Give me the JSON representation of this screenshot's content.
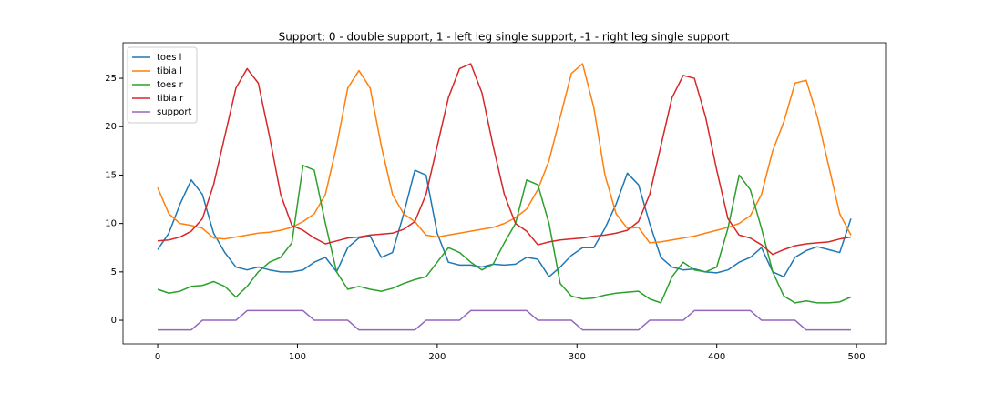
{
  "chart_data": {
    "type": "line",
    "title": "Support: 0 - double support, 1 - left leg single support, -1 - right leg single support",
    "x": [
      0,
      8,
      16,
      24,
      32,
      40,
      48,
      56,
      64,
      72,
      80,
      88,
      96,
      104,
      112,
      120,
      128,
      136,
      144,
      152,
      160,
      168,
      176,
      184,
      192,
      200,
      208,
      216,
      224,
      232,
      240,
      248,
      256,
      264,
      272,
      280,
      288,
      296,
      304,
      312,
      320,
      328,
      336,
      344,
      352,
      360,
      368,
      376,
      384,
      392,
      400,
      408,
      416,
      424,
      432,
      440,
      448,
      456,
      464,
      472,
      480,
      488,
      496
    ],
    "series": [
      {
        "name": "toes l",
        "color": "#1f77b4",
        "values": [
          7.3,
          9,
          12,
          14.5,
          13,
          9,
          7,
          5.5,
          5.2,
          5.5,
          5.2,
          5,
          5,
          5.2,
          6,
          6.5,
          5,
          7.5,
          8.5,
          8.7,
          6.5,
          7,
          11,
          15.5,
          15,
          9,
          6,
          5.7,
          5.7,
          5.5,
          5.8,
          5.7,
          5.8,
          6.5,
          6.3,
          4.5,
          5.5,
          6.7,
          7.5,
          7.5,
          9.5,
          12,
          15.2,
          14,
          10,
          6.5,
          5.5,
          5.2,
          5.3,
          5,
          4.9,
          5.2,
          6,
          6.5,
          7.5,
          5,
          4.5,
          6.5,
          7.2,
          7.6,
          7.3,
          7,
          10.5
        ]
      },
      {
        "name": "tibia l",
        "color": "#ff7f0e",
        "values": [
          13.7,
          11,
          10,
          9.8,
          9.5,
          8.5,
          8.4,
          8.6,
          8.8,
          9.0,
          9.1,
          9.3,
          9.6,
          10.2,
          11,
          13,
          18,
          24,
          25.8,
          24,
          18,
          13,
          11,
          10.2,
          8.8,
          8.6,
          8.8,
          9.0,
          9.2,
          9.4,
          9.6,
          10,
          10.6,
          11.5,
          13.5,
          16.5,
          21,
          25.5,
          26.5,
          22,
          15,
          11,
          9.5,
          9.6,
          8,
          8.1,
          8.3,
          8.5,
          8.7,
          9,
          9.3,
          9.6,
          10,
          10.8,
          13,
          17.5,
          20.5,
          24.5,
          24.8,
          21,
          16,
          11,
          8.8
        ]
      },
      {
        "name": "toes r",
        "color": "#2ca02c",
        "values": [
          3.2,
          2.8,
          3,
          3.5,
          3.6,
          4,
          3.5,
          2.4,
          3.5,
          5,
          6,
          6.5,
          8,
          16,
          15.5,
          10,
          5,
          3.2,
          3.5,
          3.2,
          3,
          3.3,
          3.8,
          4.2,
          4.5,
          6,
          7.5,
          7,
          6,
          5.2,
          5.8,
          8,
          10,
          14.5,
          14,
          10,
          3.8,
          2.5,
          2.2,
          2.3,
          2.6,
          2.8,
          2.9,
          3,
          2.2,
          1.8,
          4.5,
          6,
          5.2,
          5,
          5.5,
          9.5,
          15,
          13.5,
          9.5,
          5,
          2.5,
          1.8,
          2,
          1.8,
          1.8,
          1.9,
          2.4
        ]
      },
      {
        "name": "tibia r",
        "color": "#d62728",
        "values": [
          8.2,
          8.3,
          8.6,
          9.2,
          10.5,
          14,
          19,
          24,
          26,
          24.5,
          19,
          13,
          9.8,
          9.3,
          8.5,
          7.9,
          8.2,
          8.5,
          8.6,
          8.8,
          8.9,
          9.0,
          9.4,
          10.2,
          13,
          18,
          23,
          26,
          26.5,
          23.5,
          18,
          13,
          10,
          9.2,
          7.8,
          8.1,
          8.3,
          8.4,
          8.5,
          8.7,
          8.8,
          9.0,
          9.3,
          10.2,
          13,
          18,
          23,
          25.3,
          25,
          21,
          15.5,
          10.5,
          8.8,
          8.5,
          7.8,
          6.8,
          7.3,
          7.7,
          7.9,
          8.0,
          8.1,
          8.4,
          8.6
        ]
      },
      {
        "name": "support",
        "color": "#9467bd",
        "values": [
          -1,
          -1,
          -1,
          -1,
          0,
          0,
          0,
          0,
          1,
          1,
          1,
          1,
          1,
          1,
          0,
          0,
          0,
          0,
          -1,
          -1,
          -1,
          -1,
          -1,
          -1,
          0,
          0,
          0,
          0,
          1,
          1,
          1,
          1,
          1,
          1,
          0,
          0,
          0,
          0,
          -1,
          -1,
          -1,
          -1,
          -1,
          -1,
          0,
          0,
          0,
          0,
          1,
          1,
          1,
          1,
          1,
          1,
          0,
          0,
          0,
          0,
          -1,
          -1,
          -1,
          -1,
          -1
        ]
      }
    ],
    "xlim": [
      -24.8,
      520.8
    ],
    "ylim": [
      -2.44,
      28.67
    ],
    "xticks": [
      0,
      100,
      200,
      300,
      400,
      500
    ],
    "yticks": [
      0,
      5,
      10,
      15,
      20,
      25
    ],
    "grid": false,
    "legend": "upper left"
  }
}
